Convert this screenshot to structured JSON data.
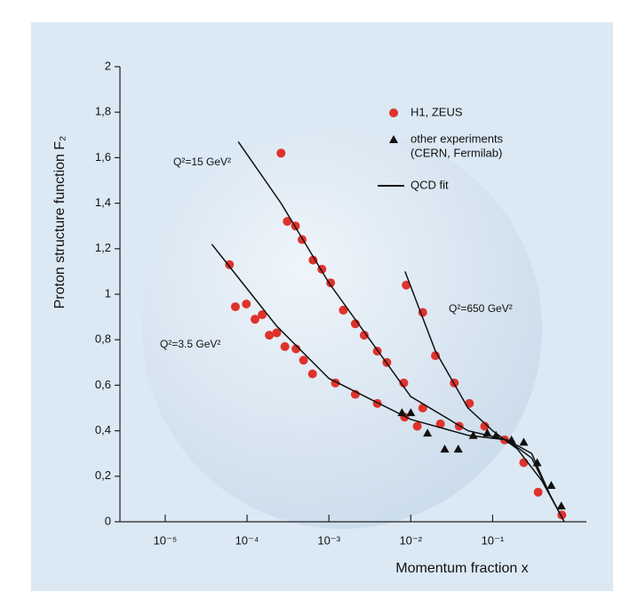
{
  "chart_data": {
    "type": "scatter",
    "xlabel": "Momentum fraction x",
    "ylabel": "Proton structure function F₂",
    "xscale": "log",
    "xlim": [
      2.8e-06,
      1.4
    ],
    "ylim": [
      0,
      2
    ],
    "xticks": [
      {
        "value": 1e-05,
        "label": "10⁻⁵"
      },
      {
        "value": 0.0001,
        "label": "10⁻⁴"
      },
      {
        "value": 0.001,
        "label": "10⁻³"
      },
      {
        "value": 0.01,
        "label": "10⁻²"
      },
      {
        "value": 0.1,
        "label": "10⁻¹"
      }
    ],
    "yticks": [
      0,
      {
        "value": 0.2,
        "label": "0,2"
      },
      {
        "value": 0.4,
        "label": "0,4"
      },
      {
        "value": 0.6,
        "label": "0,6"
      },
      {
        "value": 0.8,
        "label": "0,8"
      },
      1,
      {
        "value": 1.2,
        "label": "1,2"
      },
      {
        "value": 1.4,
        "label": "1,4"
      },
      {
        "value": 1.6,
        "label": "1,6"
      },
      {
        "value": 1.8,
        "label": "1,8"
      },
      2
    ],
    "annotations": [
      "Q²=15 GeV²",
      "Q²=3.5 GeV²",
      "Q²=650 GeV²"
    ],
    "series": [
      {
        "name": "H1, ZEUS",
        "color": "#e0322c",
        "marker": "circle",
        "x": [
          6.1e-05,
          7.2e-05,
          9.8e-05,
          0.000125,
          0.000153,
          0.000187,
          0.00023,
          0.00029,
          0.000396,
          0.00049,
          0.00063,
          0.0012,
          0.0021,
          0.0039,
          0.0084,
          0.012,
          0.00026,
          0.00031,
          0.00039,
          0.00047,
          0.00064,
          0.00082,
          0.00105,
          0.0015,
          0.0021,
          0.0027,
          0.0039,
          0.0051,
          0.0082,
          0.014,
          0.023,
          0.039,
          0.0088,
          0.014,
          0.02,
          0.034,
          0.052,
          0.08,
          0.14,
          0.24,
          0.36,
          0.7
        ],
        "values": [
          1.13,
          0.945,
          0.957,
          0.89,
          0.91,
          0.82,
          0.83,
          0.77,
          0.76,
          0.71,
          0.65,
          0.61,
          0.56,
          0.52,
          0.46,
          0.42,
          1.62,
          1.32,
          1.3,
          1.24,
          1.15,
          1.11,
          1.05,
          0.93,
          0.87,
          0.82,
          0.75,
          0.7,
          0.61,
          0.5,
          0.43,
          0.42,
          1.04,
          0.92,
          0.73,
          0.61,
          0.52,
          0.42,
          0.36,
          0.26,
          0.13,
          0.03
        ]
      },
      {
        "name": "other experiments",
        "note": "(CERN, Fermilab)",
        "color": "#111111",
        "marker": "triangle",
        "x": [
          0.0078,
          0.01,
          0.016,
          0.026,
          0.038,
          0.058,
          0.086,
          0.11,
          0.17,
          0.24,
          0.35,
          0.52,
          0.69
        ],
        "values": [
          0.48,
          0.48,
          0.39,
          0.32,
          0.32,
          0.38,
          0.39,
          0.38,
          0.36,
          0.35,
          0.26,
          0.16,
          0.07
        ]
      },
      {
        "name": "QCD fit",
        "color": "#111111",
        "marker": "line",
        "x": [
          3.7e-05,
          0.00023,
          0.001,
          0.01,
          0.05,
          0.15,
          0.3,
          0.5,
          0.75,
          null,
          7.8e-05,
          0.00026,
          0.001,
          0.01,
          0.05,
          0.15,
          0.3,
          0.5,
          0.75,
          null,
          0.0085,
          0.02,
          0.05,
          0.1,
          0.2,
          0.4,
          0.7
        ],
        "values": [
          1.22,
          0.86,
          0.63,
          0.45,
          0.38,
          0.36,
          0.3,
          0.12,
          0,
          null,
          1.67,
          1.4,
          1.05,
          0.55,
          0.4,
          0.36,
          0.28,
          0.12,
          0,
          null,
          1.1,
          0.75,
          0.5,
          0.4,
          0.32,
          0.18,
          0.02
        ]
      }
    ]
  }
}
